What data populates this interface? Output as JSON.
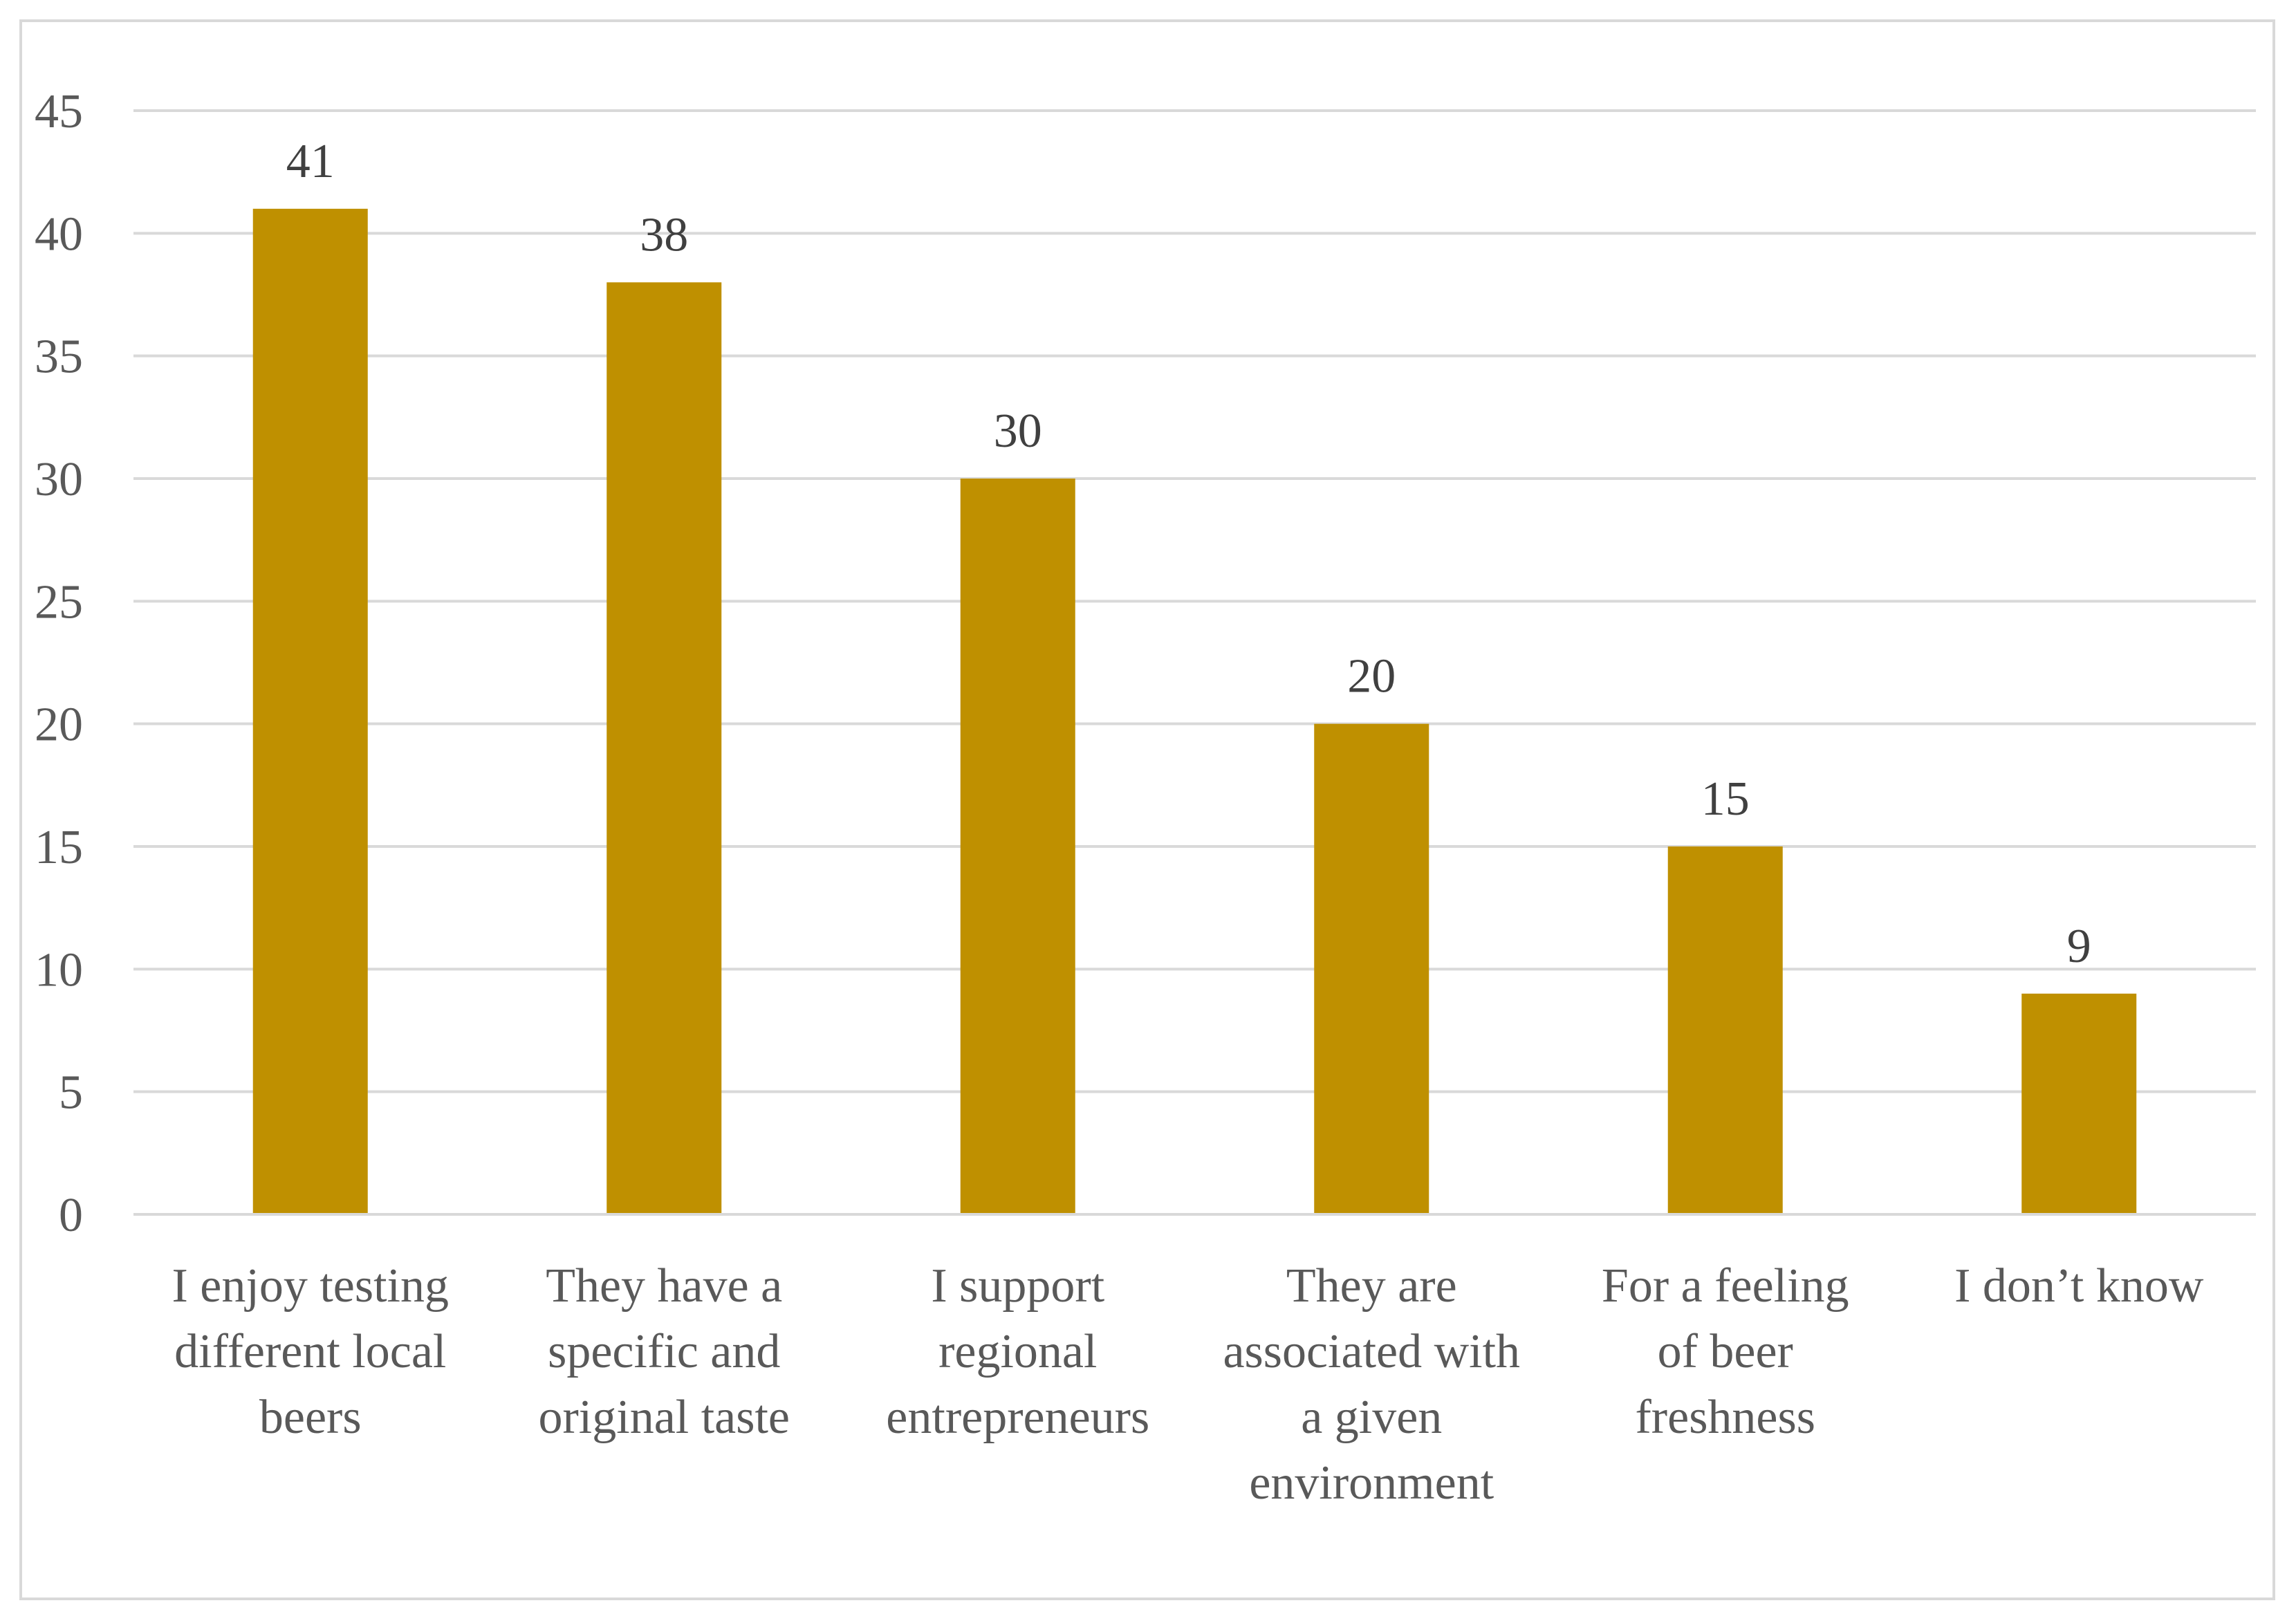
{
  "chart_data": {
    "type": "bar",
    "title": "",
    "xlabel": "",
    "ylabel": "",
    "categories": [
      "I enjoy testing different local beers",
      "They have a specific and original taste",
      "I support regional entrepreneurs",
      "They are associated with a given environment",
      "For a feeling of beer freshness",
      "I don’t know"
    ],
    "category_lines": [
      [
        "I enjoy testing",
        "different local",
        "beers"
      ],
      [
        "They have a",
        "specific and",
        "original taste"
      ],
      [
        "I support",
        "regional",
        "entrepreneurs"
      ],
      [
        "They are",
        "associated with",
        "a given",
        "environment"
      ],
      [
        "For a feeling",
        "of beer",
        "freshness"
      ],
      [
        "I don’t know"
      ]
    ],
    "values": [
      41,
      38,
      30,
      20,
      15,
      9
    ],
    "ylim": [
      0,
      45
    ],
    "yticks": [
      0,
      5,
      10,
      15,
      20,
      25,
      30,
      35,
      40,
      45
    ],
    "grid": true,
    "legend": "none",
    "data_labels": true,
    "bar_color": "#BF9000",
    "grid_color": "#D9D9D9",
    "axis_color": "#D9D9D9"
  }
}
